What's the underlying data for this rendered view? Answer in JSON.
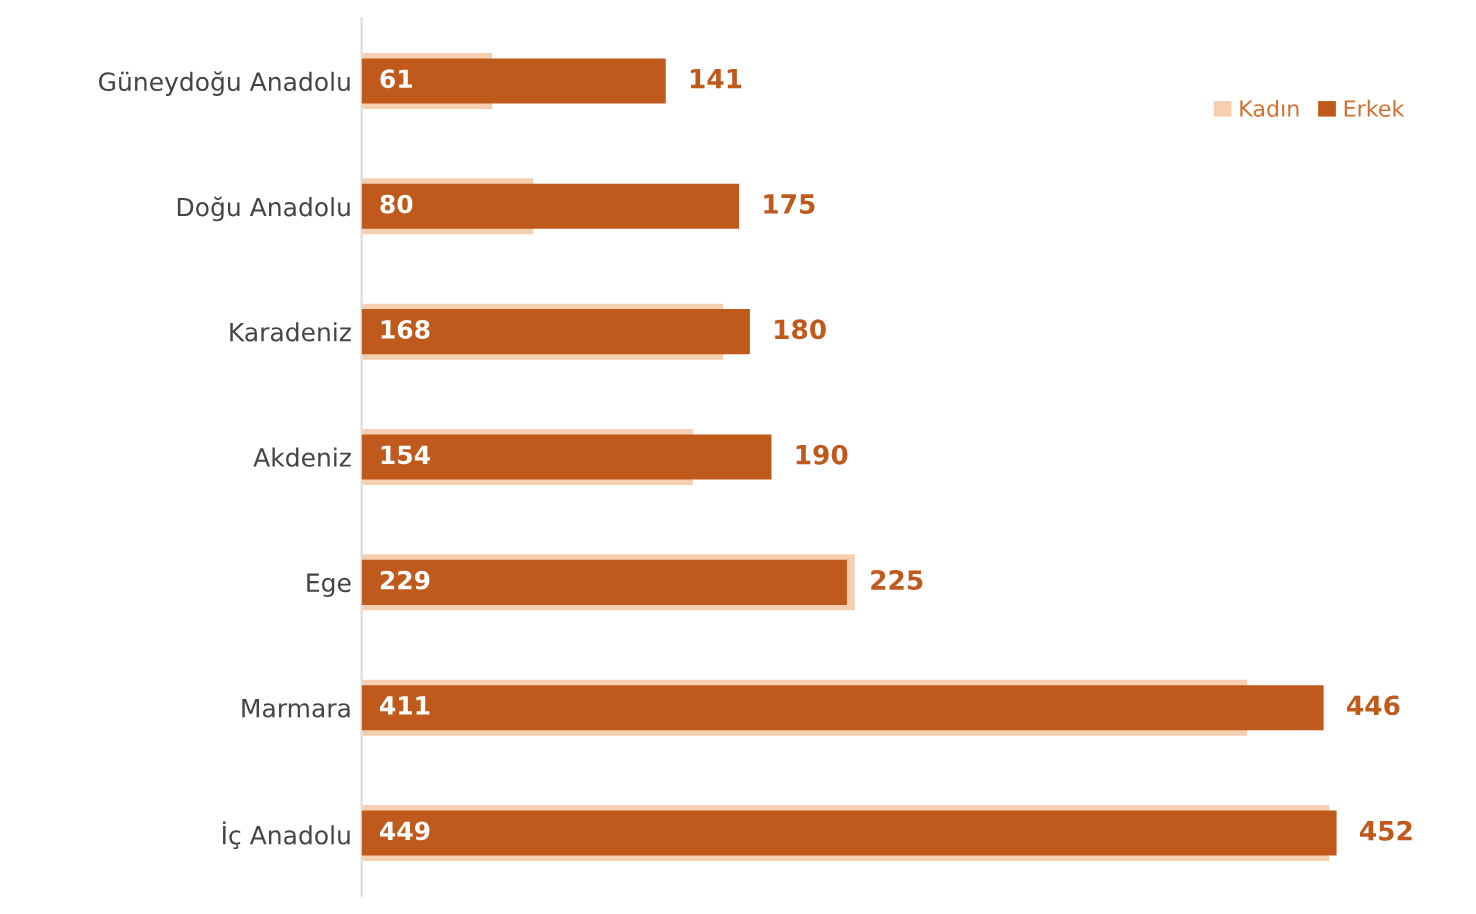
{
  "chart_data": {
    "type": "bar",
    "orientation": "horizontal",
    "categories": [
      "Güneydoğu Anadolu",
      "Doğu Anadolu",
      "Karadeniz",
      "Akdeniz",
      "Ege",
      "Marmara",
      "İç Anadolu"
    ],
    "series": [
      {
        "name": "Kadın",
        "color": "#f6cfb0",
        "values": [
          61,
          80,
          168,
          154,
          229,
          411,
          449
        ]
      },
      {
        "name": "Erkek",
        "color": "#c05a1c",
        "values": [
          141,
          175,
          180,
          190,
          225,
          446,
          452
        ]
      }
    ],
    "data_labels": true,
    "legend": "top right",
    "grid": false,
    "tick_labels": "y"
  }
}
